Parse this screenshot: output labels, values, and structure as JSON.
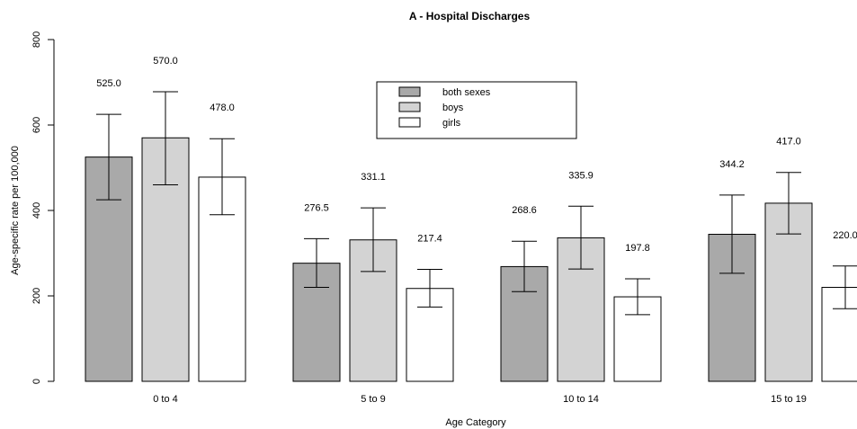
{
  "chart_data": {
    "type": "bar",
    "title": "A - Hospital Discharges",
    "xlabel": "Age Category",
    "ylabel": "Age-specific rate per 100,000",
    "ylim": [
      0,
      800
    ],
    "yticks": [
      "0",
      "200",
      "400",
      "600",
      "800"
    ],
    "categories": [
      "0 to 4",
      "5 to 9",
      "10 to 14",
      "15 to 19"
    ],
    "series": [
      {
        "name": "both sexes",
        "color": "#a9a9a9",
        "values": [
          525.0,
          276.5,
          268.6,
          344.2
        ],
        "labels": [
          "525.0",
          "276.5",
          "268.6",
          "344.2"
        ],
        "ci_low": [
          425,
          220,
          210,
          253
        ],
        "ci_high": [
          625,
          334,
          328,
          436
        ]
      },
      {
        "name": "boys",
        "color": "#d3d3d3",
        "values": [
          570.0,
          331.1,
          335.9,
          417.0
        ],
        "labels": [
          "570.0",
          "331.1",
          "335.9",
          "417.0"
        ],
        "ci_low": [
          460,
          257,
          263,
          345
        ],
        "ci_high": [
          678,
          406,
          410,
          489
        ]
      },
      {
        "name": "girls",
        "color": "#ffffff",
        "values": [
          478.0,
          217.4,
          197.8,
          220.0
        ],
        "labels": [
          "478.0",
          "217.4",
          "197.8",
          "220.0"
        ],
        "ci_low": [
          390,
          174,
          156,
          170
        ],
        "ci_high": [
          568,
          262,
          240,
          270
        ]
      }
    ],
    "legend_position": "top-center",
    "grid": false
  }
}
